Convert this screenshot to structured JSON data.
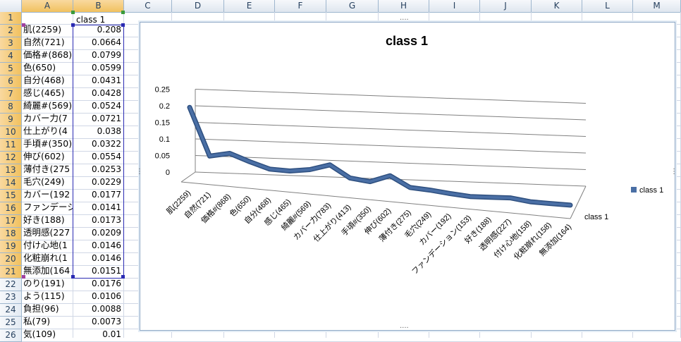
{
  "columns": [
    "A",
    "B",
    "C",
    "D",
    "E",
    "F",
    "G",
    "H",
    "I",
    "J",
    "K",
    "L",
    "M"
  ],
  "rows": [
    "1",
    "2",
    "3",
    "4",
    "5",
    "6",
    "7",
    "8",
    "9",
    "10",
    "11",
    "12",
    "13",
    "14",
    "15",
    "16",
    "17",
    "18",
    "19",
    "20",
    "21",
    "22",
    "23",
    "24",
    "25",
    "26"
  ],
  "cells": {
    "B1": "class 1",
    "A": [
      "肌(2259)",
      "自然(721)",
      "価格#(868)",
      "色(650)",
      "自分(468)",
      "感じ(465)",
      "綺麗#(569)",
      "カバー力(7",
      "仕上がり(4",
      "手頃#(350)",
      "伸び(602)",
      "薄付き(275",
      "毛穴(249)",
      "カバー(192",
      "ファンデーシ",
      "好き(188)",
      "透明感(227",
      "付け心地(1",
      "化粧崩れ(1",
      "無添加(164",
      "のり(191)",
      "よう(115)",
      "負担(96)",
      "私(79)",
      "気(109)"
    ],
    "B": [
      "0.208",
      "0.0664",
      "0.0799",
      "0.0599",
      "0.0431",
      "0.0428",
      "0.0524",
      "0.0721",
      "0.038",
      "0.0322",
      "0.0554",
      "0.0253",
      "0.0229",
      "0.0177",
      "0.0141",
      "0.0173",
      "0.0209",
      "0.0146",
      "0.0146",
      "0.0151",
      "0.0176",
      "0.0106",
      "0.0088",
      "0.0073",
      "0.01"
    ]
  },
  "chart_data": {
    "type": "line",
    "title": "class 1",
    "categories": [
      "肌(2259)",
      "自然(721)",
      "価格#(868)",
      "色(650)",
      "自分(468)",
      "感じ(465)",
      "綺麗#(569)",
      "カバー力(783)",
      "仕上がり(413)",
      "手頃#(350)",
      "伸び(602)",
      "薄付き(275)",
      "毛穴(249)",
      "カバー(192)",
      "ファンデーション(153)",
      "好き(188)",
      "透明感(227)",
      "付け心地(158)",
      "化粧崩れ(158)",
      "無添加(164)"
    ],
    "series": [
      {
        "name": "class 1",
        "values": [
          0.208,
          0.0664,
          0.0799,
          0.0599,
          0.0431,
          0.0428,
          0.0524,
          0.0721,
          0.038,
          0.0322,
          0.0554,
          0.0253,
          0.0229,
          0.0177,
          0.0141,
          0.0173,
          0.0209,
          0.0146,
          0.0146,
          0.0151
        ]
      }
    ],
    "yticks": [
      "0",
      "0.05",
      "0.1",
      "0.15",
      "0.2",
      "0.25"
    ],
    "ylim": [
      0,
      0.25
    ],
    "legend": "right",
    "series_axis_label": "class 1",
    "line_color": "#4a6fa5",
    "grid": true
  }
}
